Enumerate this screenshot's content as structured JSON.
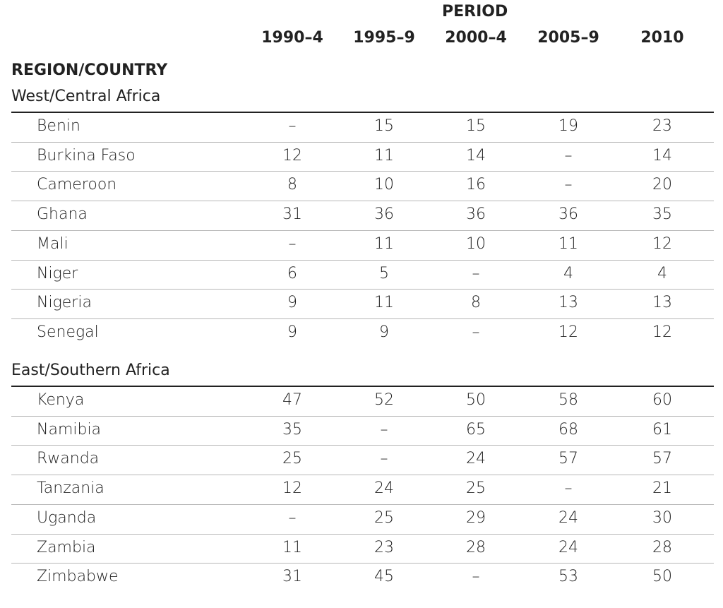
{
  "table": {
    "period_label": "PERIOD",
    "region_label": "REGION/COUNTRY",
    "columns": [
      "1990–4",
      "1995–9",
      "2000–4",
      "2005–9",
      "2010"
    ],
    "sections": [
      {
        "title": "West/Central Africa",
        "rows": [
          {
            "country": "Benin",
            "values": [
              "–",
              "15",
              "15",
              "19",
              "23"
            ]
          },
          {
            "country": "Burkina Faso",
            "values": [
              "12",
              "11",
              "14",
              "–",
              "14"
            ]
          },
          {
            "country": "Cameroon",
            "values": [
              "8",
              "10",
              "16",
              "–",
              "20"
            ]
          },
          {
            "country": "Ghana",
            "values": [
              "31",
              "36",
              "36",
              "36",
              "35"
            ]
          },
          {
            "country": "Mali",
            "values": [
              "–",
              "11",
              "10",
              "11",
              "12"
            ]
          },
          {
            "country": "Niger",
            "values": [
              "6",
              "5",
              "–",
              "4",
              "4"
            ]
          },
          {
            "country": "Nigeria",
            "values": [
              "9",
              "11",
              "8",
              "13",
              "13"
            ]
          },
          {
            "country": "Senegal",
            "values": [
              "9",
              "9",
              "–",
              "12",
              "12"
            ]
          }
        ]
      },
      {
        "title": "East/Southern Africa",
        "rows": [
          {
            "country": "Kenya",
            "values": [
              "47",
              "52",
              "50",
              "58",
              "60"
            ]
          },
          {
            "country": "Namibia",
            "values": [
              "35",
              "–",
              "65",
              "68",
              "61"
            ]
          },
          {
            "country": "Rwanda",
            "values": [
              "25",
              "–",
              "24",
              "57",
              "57"
            ]
          },
          {
            "country": "Tanzania",
            "values": [
              "12",
              "24",
              "25",
              "–",
              "21"
            ]
          },
          {
            "country": "Uganda",
            "values": [
              "–",
              "25",
              "29",
              "24",
              "30"
            ]
          },
          {
            "country": "Zambia",
            "values": [
              "11",
              "23",
              "28",
              "24",
              "28"
            ]
          },
          {
            "country": "Zimbabwe",
            "values": [
              "31",
              "45",
              "–",
              "53",
              "50"
            ]
          }
        ]
      }
    ]
  }
}
